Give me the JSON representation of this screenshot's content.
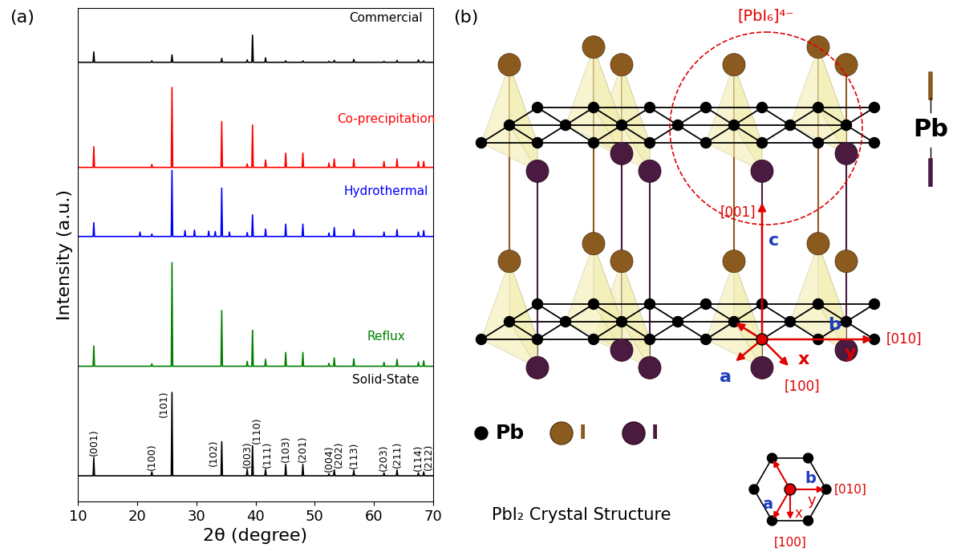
{
  "panel_labels": [
    "(a)",
    "(b)"
  ],
  "chart_data": {
    "type": "line",
    "x_label": "2θ (degree)",
    "y_label": "Intensity (a.u.)",
    "xlim": [
      10,
      70
    ],
    "xticks": [
      10,
      20,
      30,
      40,
      50,
      60,
      70
    ],
    "ylim": [
      0,
      100
    ],
    "tick_labels": "x",
    "x": [
      12.7,
      20.5,
      22.5,
      25.9,
      28.1,
      29.7,
      32.1,
      33.2,
      34.3,
      35.6,
      38.6,
      39.5,
      41.7,
      45.1,
      48.0,
      52.4,
      53.3,
      56.6,
      61.7,
      63.9,
      67.5,
      68.4
    ],
    "series": [
      {
        "name": "Commercial",
        "color": "#000000",
        "baseline": 89.0,
        "values": [
          91.1,
          89.0,
          89.3,
          90.5,
          89.0,
          89.0,
          89.0,
          89.0,
          89.8,
          89.0,
          89.5,
          94.5,
          89.9,
          89.3,
          89.3,
          89.2,
          89.4,
          89.6,
          89.2,
          89.4,
          89.5,
          89.3
        ]
      },
      {
        "name": "Co-precipitation",
        "color": "#ff0000",
        "baseline": 67.7,
        "values": [
          71.9,
          67.7,
          68.3,
          83.9,
          67.7,
          67.7,
          67.7,
          67.7,
          77.0,
          67.7,
          68.4,
          76.3,
          69.2,
          70.6,
          70.6,
          68.6,
          69.4,
          69.4,
          68.9,
          69.4,
          68.9,
          68.9
        ]
      },
      {
        "name": "Hydrothermal",
        "color": "#0000ff",
        "baseline": 53.7,
        "values": [
          56.5,
          54.6,
          54.2,
          67.1,
          54.9,
          55.0,
          54.8,
          54.7,
          63.5,
          54.6,
          54.5,
          58.1,
          55.2,
          56.2,
          56.2,
          54.4,
          55.5,
          55.1,
          54.6,
          55.1,
          54.6,
          54.9
        ]
      },
      {
        "name": "Reflux",
        "color": "#008000",
        "baseline": 27.4,
        "values": [
          31.5,
          27.4,
          27.9,
          48.4,
          27.4,
          27.4,
          27.4,
          27.4,
          38.7,
          27.4,
          28.4,
          34.7,
          28.8,
          30.2,
          30.2,
          28.0,
          29.1,
          28.9,
          28.2,
          28.8,
          28.2,
          28.5
        ]
      },
      {
        "name": "Solid-State",
        "color": "#000000",
        "baseline": 5.2,
        "values": [
          8.9,
          5.2,
          6.0,
          22.1,
          5.2,
          5.2,
          5.2,
          5.2,
          12.1,
          5.2,
          6.5,
          11.3,
          6.5,
          7.5,
          7.5,
          5.6,
          6.4,
          6.3,
          5.8,
          6.4,
          5.8,
          6.0
        ]
      }
    ],
    "annotations": [
      {
        "x": 12.7,
        "text": "(001)"
      },
      {
        "x": 22.5,
        "text": "(100)"
      },
      {
        "x": 25.9,
        "text": "(101)"
      },
      {
        "x": 34.3,
        "text": "(102)"
      },
      {
        "x": 38.6,
        "text": "(003)"
      },
      {
        "x": 39.5,
        "text": "(110)"
      },
      {
        "x": 41.7,
        "text": "(111)"
      },
      {
        "x": 45.1,
        "text": "(103)"
      },
      {
        "x": 48.0,
        "text": "(201)"
      },
      {
        "x": 52.4,
        "text": "(004)"
      },
      {
        "x": 53.3,
        "text": "(202)"
      },
      {
        "x": 56.6,
        "text": "(113)"
      },
      {
        "x": 61.7,
        "text": "(203)"
      },
      {
        "x": 63.9,
        "text": "(211)"
      },
      {
        "x": 67.5,
        "text": "(114)"
      },
      {
        "x": 68.4,
        "text": "(212)"
      }
    ]
  },
  "diagram": {
    "complex_label": "[PbI₆]⁴⁻",
    "direction_labels": {
      "c": "[001]",
      "y": "[010]",
      "x": "[100]"
    },
    "axis_letters": {
      "a": "a",
      "b": "b",
      "c": "c",
      "x": "x",
      "y": "y"
    },
    "side_label": "Pb",
    "legend": [
      {
        "label": "Pb",
        "color": "#000000"
      },
      {
        "label": "I",
        "color": "#8b5a1f"
      },
      {
        "label": "I",
        "color": "#4a1a40"
      }
    ],
    "caption": "PbI₂ Crystal Structure"
  }
}
